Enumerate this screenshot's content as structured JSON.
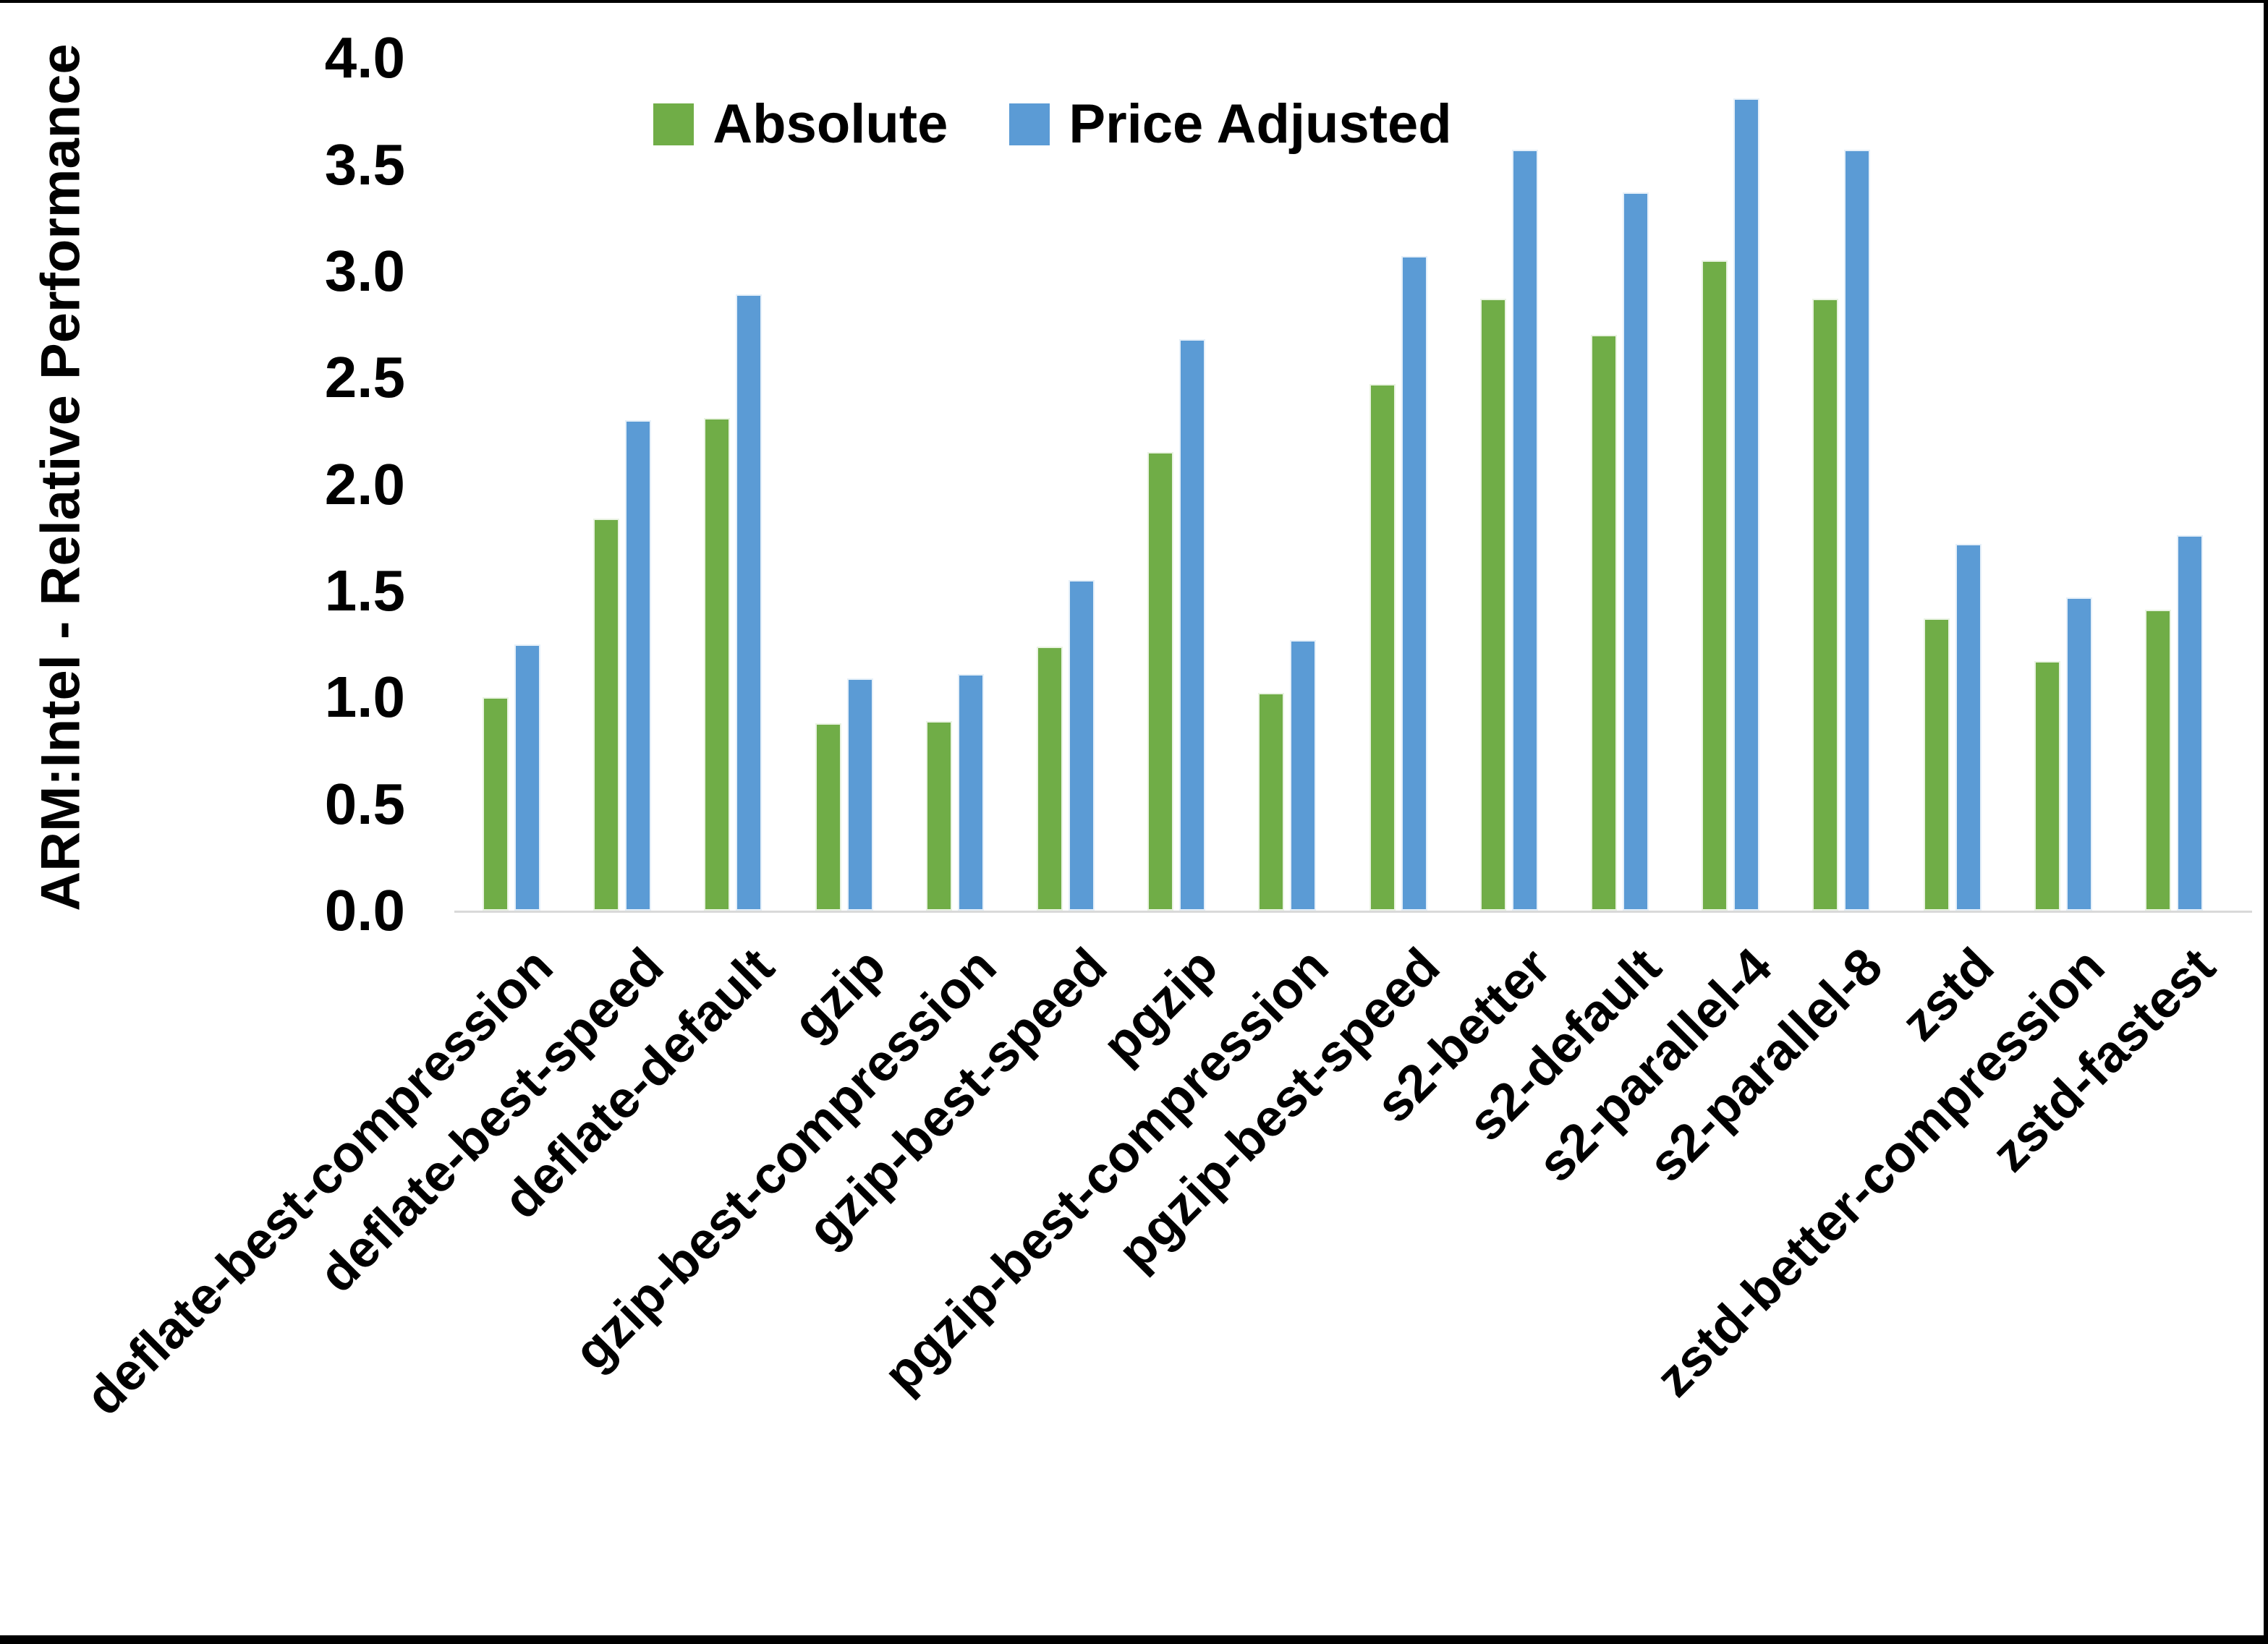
{
  "colors": {
    "absolute_green": "#70AD47",
    "price_adjusted_blue": "#5B9BD5",
    "axis_line_gray": "#D9D9D9",
    "text_black": "#000000",
    "background_white": "#FFFFFF",
    "frame_black": "#000000"
  },
  "chart_data": {
    "type": "bar",
    "title": "",
    "xlabel": "",
    "ylabel": "ARM:Intel - Relative Performance",
    "ylim": [
      0.0,
      4.0
    ],
    "ytick_step": 0.5,
    "yticks": [
      "0.0",
      "0.5",
      "1.0",
      "1.5",
      "2.0",
      "2.5",
      "3.0",
      "3.5",
      "4.0"
    ],
    "grid": false,
    "legend_position": "top-center",
    "categories": [
      "deflate-best-compression",
      "deflate-best-speed",
      "deflate-default",
      "gzip",
      "gzip-best-compression",
      "gzip-best-speed",
      "pgzip",
      "pgzip-best-compression",
      "pgzip-best-speed",
      "s2-better",
      "s2-default",
      "s2-parallel-4",
      "s2-parallel-8",
      "zstd",
      "zstd-better-compression",
      "zstd-fastest"
    ],
    "series": [
      {
        "name": "Absolute",
        "color": "#70AD47",
        "values": [
          1.0,
          1.84,
          2.31,
          0.88,
          0.89,
          1.24,
          2.15,
          1.02,
          2.47,
          2.87,
          2.7,
          3.05,
          2.87,
          1.37,
          1.17,
          1.41
        ]
      },
      {
        "name": "Price Adjusted",
        "color": "#5B9BD5",
        "values": [
          1.25,
          2.3,
          2.89,
          1.09,
          1.11,
          1.55,
          2.68,
          1.27,
          3.07,
          3.57,
          3.37,
          3.81,
          3.57,
          1.72,
          1.47,
          1.76
        ]
      }
    ]
  }
}
